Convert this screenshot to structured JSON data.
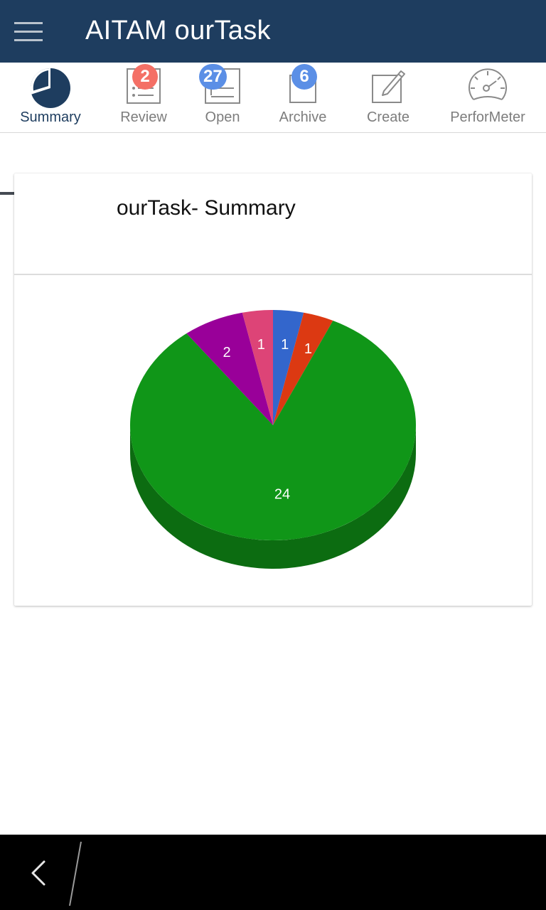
{
  "app": {
    "title": "AITAM ourTask",
    "menu_icon": "hamburger-menu-icon"
  },
  "tabs": [
    {
      "label": "Summary",
      "icon": "pie-chart-icon",
      "badge": null,
      "active": true
    },
    {
      "label": "Review",
      "icon": "review-checklist-icon",
      "badge": "2",
      "badge_color": "#f47066"
    },
    {
      "label": "Open",
      "icon": "open-list-icon",
      "badge": "27",
      "badge_color": "#5b8fe6"
    },
    {
      "label": "Archive",
      "icon": "archive-box-icon",
      "badge": "6",
      "badge_color": "#5b8fe6"
    },
    {
      "label": "Create",
      "icon": "edit-pencil-icon",
      "badge": null
    },
    {
      "label": "PerforMeter",
      "icon": "speedometer-icon",
      "badge": null
    }
  ],
  "card": {
    "title": "ourTask- Summary"
  },
  "chart_data": {
    "type": "pie",
    "style": "3d",
    "slices": [
      {
        "value": 1,
        "label": "1",
        "color": "#3366cc"
      },
      {
        "value": 1,
        "label": "1",
        "color": "#dc3912"
      },
      {
        "value": 24,
        "label": "24",
        "color": "#109618"
      },
      {
        "value": 2,
        "label": "2",
        "color": "#990099"
      },
      {
        "value": 1,
        "label": "1",
        "color": "#dd4477"
      }
    ]
  },
  "colors": {
    "appbar": "#1e3d5f",
    "active_tab": "#1e3d5f",
    "inactive_tab": "#7d7d7d"
  },
  "system_nav": {
    "back_icon": "back-arrow-icon"
  }
}
